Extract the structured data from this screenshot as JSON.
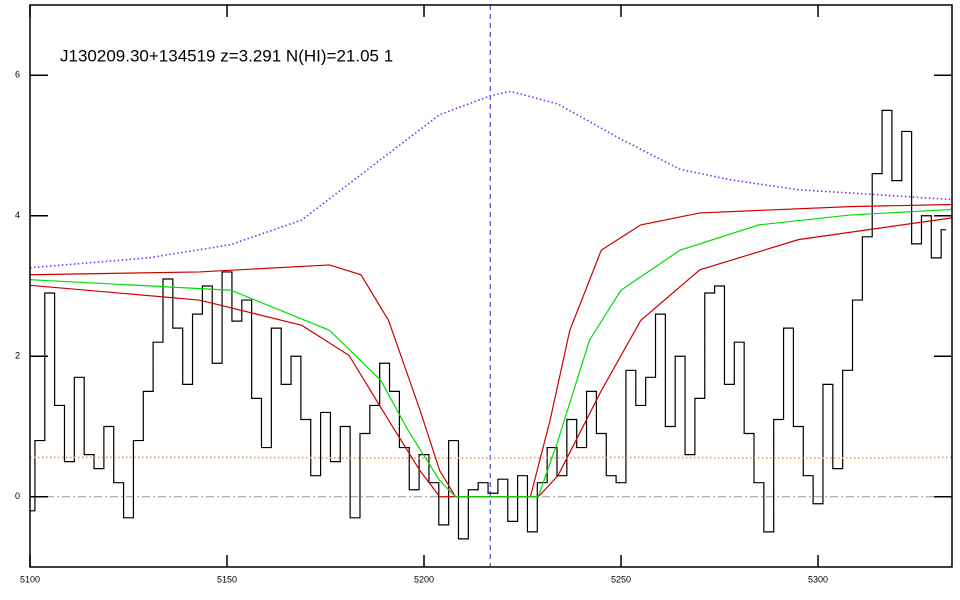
{
  "chart_data": {
    "type": "line",
    "title": "J130209.30+134519 z=3.291 N(HI)=21.05 1",
    "xlim": [
      5100,
      5334
    ],
    "ylim": [
      -1,
      7
    ],
    "xticks": [
      5100,
      5150,
      5200,
      5250,
      5300
    ],
    "yticks": [
      0,
      2,
      4,
      6
    ],
    "hline": 0,
    "vline": 5216.8,
    "series": [
      {
        "color": "#000000",
        "style": "step",
        "x": [
          5100,
          5102.5,
          5105,
          5107.5,
          5110,
          5112.5,
          5115,
          5117.5,
          5120,
          5122.5,
          5125,
          5127.5,
          5130,
          5132.5,
          5135,
          5137.5,
          5140,
          5142.5,
          5145,
          5147.5,
          5150,
          5152.5,
          5155,
          5157.5,
          5160,
          5162.5,
          5165,
          5167.5,
          5170,
          5172.5,
          5175,
          5177.5,
          5180,
          5182.5,
          5185,
          5187.5,
          5190,
          5192.5,
          5195,
          5197.5,
          5200,
          5202.5,
          5205,
          5207.5,
          5210,
          5212.5,
          5215,
          5217.5,
          5220,
          5222.5,
          5225,
          5227.5,
          5230,
          5232.5,
          5235,
          5237.5,
          5240,
          5242.5,
          5245,
          5247.5,
          5250,
          5252.5,
          5255,
          5257.5,
          5260,
          5262.5,
          5265,
          5267.5,
          5270,
          5272.5,
          5275,
          5277.5,
          5280,
          5282.5,
          5285,
          5287.5,
          5290,
          5292.5,
          5295,
          5297.5,
          5300,
          5302.5,
          5305,
          5307.5,
          5310,
          5312.5,
          5315,
          5317.5,
          5320,
          5322.5,
          5325,
          5327.5,
          5330,
          5332.5
        ],
        "values": [
          -0.2,
          0.8,
          2.9,
          1.3,
          0.5,
          1.7,
          0.6,
          0.4,
          1.0,
          0.2,
          -0.3,
          0.8,
          1.5,
          2.2,
          3.1,
          2.4,
          1.6,
          2.6,
          3.0,
          1.9,
          3.2,
          2.5,
          2.8,
          1.4,
          0.7,
          2.4,
          1.6,
          2.0,
          1.1,
          0.3,
          1.2,
          0.5,
          1.0,
          -0.3,
          0.9,
          1.3,
          1.9,
          1.5,
          0.7,
          0.1,
          0.6,
          0.2,
          -0.4,
          0.8,
          -0.6,
          0.1,
          0.2,
          0.05,
          0.25,
          -0.35,
          0.3,
          -0.5,
          0.2,
          0.7,
          0.3,
          1.1,
          0.7,
          1.5,
          0.9,
          0.3,
          0.2,
          1.8,
          1.3,
          1.7,
          2.6,
          1.0,
          2.0,
          0.6,
          1.4,
          2.9,
          3.0,
          1.6,
          2.2,
          0.9,
          0.2,
          -0.5,
          1.1,
          2.4,
          1.0,
          0.3,
          -0.1,
          1.6,
          0.4,
          1.8,
          2.8,
          3.7,
          4.6,
          5.5,
          4.5,
          5.2,
          3.6,
          4.0,
          3.4,
          3.8
        ]
      },
      {
        "color": "#7a2cff",
        "style": "dotted",
        "x": [
          5100,
          5130,
          5151,
          5169,
          5189,
          5204,
          5217,
          5222,
          5234,
          5250,
          5265,
          5278,
          5295,
          5315,
          5334
        ],
        "values": [
          3.26,
          3.4,
          3.59,
          3.94,
          4.8,
          5.44,
          5.71,
          5.77,
          5.59,
          5.09,
          4.66,
          4.51,
          4.37,
          4.3,
          4.23
        ]
      },
      {
        "color": "#e0a060",
        "style": "dotted",
        "x": [
          5100,
          5150,
          5200,
          5250,
          5300,
          5334
        ],
        "values": [
          0.56,
          0.56,
          0.55,
          0.56,
          0.55,
          0.56
        ]
      },
      {
        "color": "#cc0000",
        "style": "solid",
        "x": [
          5100,
          5143,
          5176,
          5184,
          5191,
          5199,
          5204,
          5208,
          5227,
          5232,
          5237,
          5245,
          5255,
          5270,
          5308,
          5334
        ],
        "values": [
          3.16,
          3.2,
          3.3,
          3.16,
          2.51,
          1.23,
          0.37,
          0.0,
          0.0,
          1.09,
          2.37,
          3.51,
          3.87,
          4.04,
          4.13,
          4.16
        ]
      },
      {
        "color": "#cc0000",
        "style": "solid",
        "x": [
          5100,
          5143,
          5169,
          5181,
          5191,
          5199,
          5204,
          5229,
          5234,
          5245,
          5255,
          5270,
          5295,
          5334
        ],
        "values": [
          3.01,
          2.8,
          2.44,
          2.01,
          1.09,
          0.37,
          0.0,
          0.0,
          0.3,
          1.51,
          2.51,
          3.23,
          3.66,
          3.97
        ]
      },
      {
        "color": "#00dd00",
        "style": "solid",
        "x": [
          5100,
          5151,
          5176,
          5189,
          5196,
          5204,
          5208,
          5229,
          5234,
          5242,
          5250,
          5265,
          5285,
          5308,
          5334
        ],
        "values": [
          3.09,
          2.94,
          2.37,
          1.66,
          0.94,
          0.23,
          0.0,
          0.0,
          0.8,
          2.23,
          2.94,
          3.51,
          3.87,
          4.01,
          4.09
        ]
      }
    ]
  }
}
